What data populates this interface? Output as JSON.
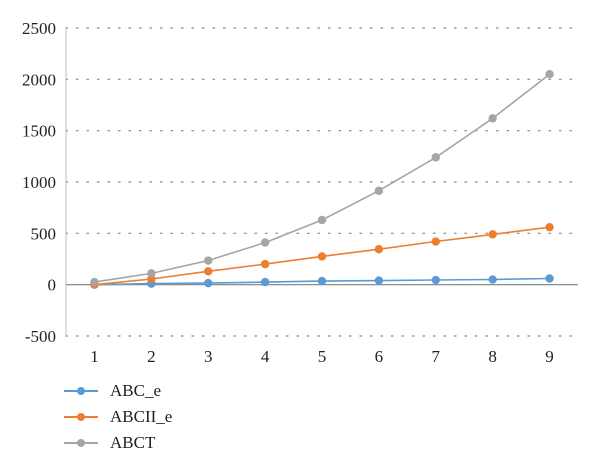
{
  "chart_data": {
    "type": "line",
    "x": [
      1,
      2,
      3,
      4,
      5,
      6,
      7,
      8,
      9
    ],
    "ylim": [
      -500,
      2500
    ],
    "yticks": [
      -500,
      0,
      500,
      1000,
      1500,
      2000,
      2500
    ],
    "grid": true,
    "legend_position": "bottom-left",
    "series": [
      {
        "name": "ABC_e",
        "color": "#5b9bd5",
        "values": [
          0,
          10,
          15,
          25,
          35,
          40,
          45,
          50,
          60
        ]
      },
      {
        "name": "ABCII_e",
        "color": "#ed7d31",
        "values": [
          0,
          55,
          130,
          200,
          275,
          345,
          420,
          490,
          560
        ]
      },
      {
        "name": "ABCT",
        "color": "#a5a5a5",
        "values": [
          25,
          110,
          235,
          410,
          630,
          915,
          1240,
          1620,
          2050
        ]
      }
    ]
  }
}
